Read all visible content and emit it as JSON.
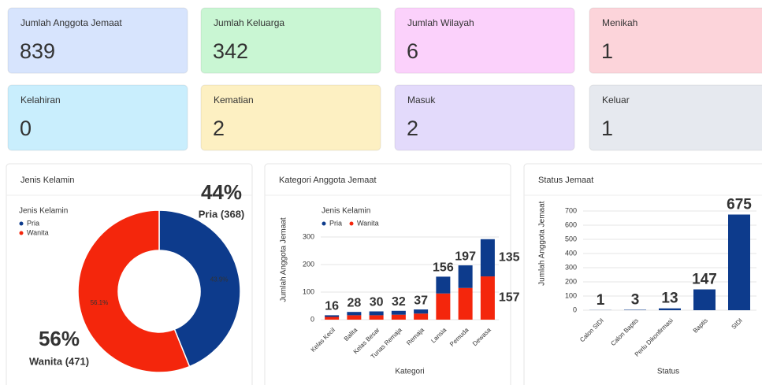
{
  "cards": [
    {
      "label": "Jumlah Anggota Jemaat",
      "value": 839,
      "color": "#d7e4fd"
    },
    {
      "label": "Jumlah Keluarga",
      "value": 342,
      "color": "#c9f6d3"
    },
    {
      "label": "Jumlah Wilayah",
      "value": 6,
      "color": "#fbd1fb"
    },
    {
      "label": "Menikah",
      "value": 1,
      "color": "#fcd4da"
    },
    {
      "label": "Kelahiran",
      "value": 0,
      "color": "#c9eefd"
    },
    {
      "label": "Kematian",
      "value": 2,
      "color": "#fdf0c2"
    },
    {
      "label": "Masuk",
      "value": 2,
      "color": "#e3dafb"
    },
    {
      "label": "Keluar",
      "value": 1,
      "color": "#e6e9ef"
    }
  ],
  "chart_data": [
    {
      "type": "pie",
      "title": "Jenis Kelamin",
      "legend_title": "Jenis Kelamin",
      "categories": [
        "Pria",
        "Wanita"
      ],
      "values": [
        43.9,
        56.1
      ],
      "value_labels": [
        "43.9%",
        "56.1%"
      ],
      "colors": [
        "#0d3b8c",
        "#f4260c"
      ],
      "annotations": [
        "44%",
        "Pria (368)",
        "56%",
        "Wanita (471)"
      ]
    },
    {
      "type": "stacked_bar",
      "title": "Kategori Anggota Jemaat",
      "legend_title": "Jenis Kelamin",
      "xlabel": "Kategori",
      "ylabel": "Jumlah Anggota Jemaat",
      "categories": [
        "Kelas Kecil",
        "Balita",
        "Kelas Besar",
        "Tunas Remaja",
        "Remaja",
        "Lansia",
        "Pemuda",
        "Dewasa"
      ],
      "series": [
        {
          "name": "Wanita",
          "color": "#f4260c",
          "values": [
            10,
            16,
            16,
            18,
            22,
            95,
            115,
            157
          ]
        },
        {
          "name": "Pria",
          "color": "#0d3b8c",
          "values": [
            6,
            12,
            14,
            14,
            15,
            61,
            82,
            135
          ]
        }
      ],
      "totals": [
        16,
        28,
        30,
        32,
        37,
        156,
        197,
        null
      ],
      "ylim": [
        0,
        320
      ],
      "yticks": [
        0,
        100,
        200,
        300
      ]
    },
    {
      "type": "bar",
      "title": "Status Jemaat",
      "xlabel": "Status",
      "ylabel": "Jumlah Anggota Jemaat",
      "categories": [
        "Calon SIDI",
        "Calon Baptis",
        "Perlu Dikonfirmasi",
        "Baptis",
        "SIDI"
      ],
      "values": [
        1,
        3,
        13,
        147,
        675
      ],
      "color": "#0d3b8c",
      "ylim": [
        0,
        720
      ],
      "yticks": [
        0,
        100,
        200,
        300,
        400,
        500,
        600,
        700
      ]
    }
  ]
}
